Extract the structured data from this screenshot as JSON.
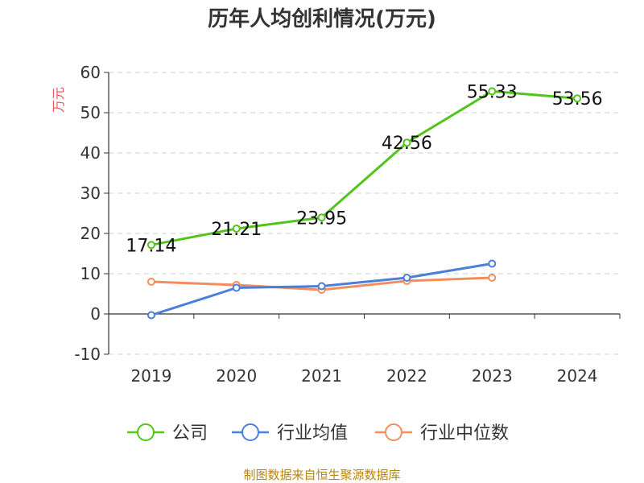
{
  "chart_data": {
    "type": "line",
    "title": "历年人均创利情况(万元)",
    "ylabel": "万元",
    "categories": [
      "2019",
      "2020",
      "2021",
      "2022",
      "2023",
      "2024"
    ],
    "ylim": [
      -10,
      60
    ],
    "yticks": [
      60,
      50,
      40,
      30,
      20,
      10,
      0,
      -10
    ],
    "grid": true,
    "legend_position": "bottom",
    "series": [
      {
        "name": "公司",
        "color": "#52c41a",
        "values": [
          17.14,
          21.21,
          23.95,
          42.56,
          55.33,
          53.56
        ],
        "labels": [
          "17.14",
          "21.21",
          "23.95",
          "42.56",
          "55.33",
          "53.56"
        ]
      },
      {
        "name": "行业均值",
        "color": "#4a7fdb",
        "values": [
          -0.3,
          6.5,
          6.9,
          9.0,
          12.5,
          null
        ]
      },
      {
        "name": "行业中位数",
        "color": "#f28e5c",
        "values": [
          8.0,
          7.2,
          6.0,
          8.2,
          9.0,
          null
        ]
      }
    ]
  },
  "source": "制图数据来自恒生聚源数据库",
  "colors": {
    "unit": "#e05a5a",
    "source": "#b8860b",
    "grid": "#cccccc",
    "axis": "#333333"
  }
}
